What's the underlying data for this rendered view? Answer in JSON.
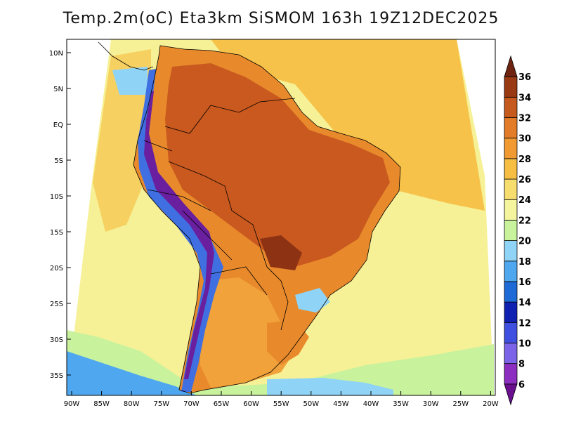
{
  "title": "Temp.2m(oC) Eta3km SiSMOM 163h 19Z12DEC2025",
  "map": {
    "lat_labels": [
      "10N",
      "5N",
      "EQ",
      "5S",
      "10S",
      "15S",
      "20S",
      "25S",
      "30S",
      "35S"
    ],
    "lon_labels": [
      "90W",
      "85W",
      "80W",
      "75W",
      "70W",
      "65W",
      "60W",
      "55W",
      "50W",
      "45W",
      "40W",
      "35W",
      "30W",
      "25W",
      "20W"
    ]
  },
  "colorbar": {
    "labels": [
      "6",
      "8",
      "10",
      "12",
      "14",
      "16",
      "18",
      "20",
      "22",
      "24",
      "26",
      "28",
      "30",
      "32",
      "34",
      "36"
    ],
    "colors": [
      "#6a0f8e",
      "#8c2fc0",
      "#7b64e8",
      "#3f4fe0",
      "#1020b0",
      "#1e6ad6",
      "#4fa8ef",
      "#8fd4f6",
      "#c9f29d",
      "#f4f59e",
      "#f7dd6e",
      "#f6bf44",
      "#f19a32",
      "#e37c28",
      "#c65a1e",
      "#9a3a14",
      "#6e2410"
    ]
  }
}
